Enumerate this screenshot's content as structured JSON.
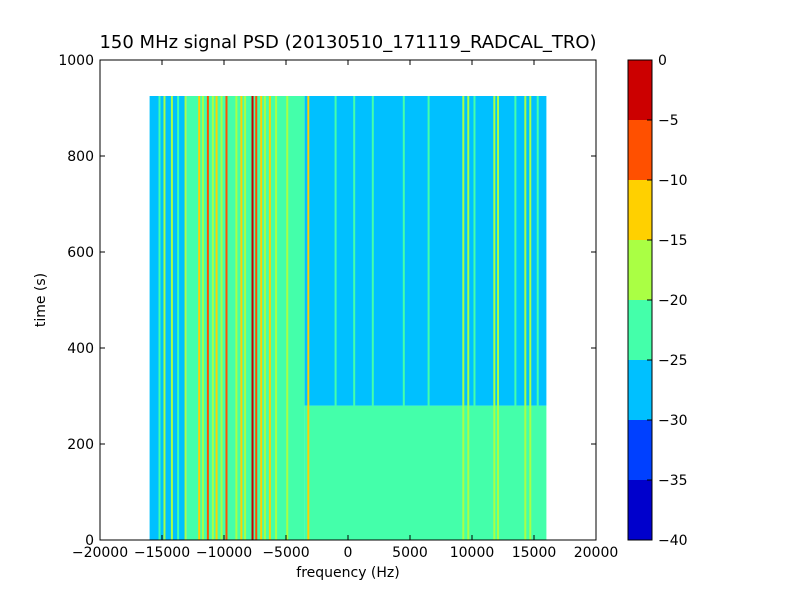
{
  "chart_data": {
    "type": "heatmap",
    "title": "150 MHz signal PSD (20130510_171119_RADCAL_TRO)",
    "xlabel": "frequency (Hz)",
    "ylabel": "time (s)",
    "xlim": [
      -20000,
      20000
    ],
    "ylim": [
      0,
      1000
    ],
    "x_ticks": [
      -20000,
      -15000,
      -10000,
      -5000,
      0,
      5000,
      10000,
      15000,
      20000
    ],
    "y_ticks": [
      0,
      200,
      400,
      600,
      800,
      1000
    ],
    "data_extent": {
      "x": [
        -16000,
        16000
      ],
      "y": [
        0,
        925
      ]
    },
    "colorbar": {
      "range": [
        -40,
        0
      ],
      "ticks": [
        0,
        -5,
        -10,
        -15,
        -20,
        -25,
        -30,
        -35,
        -40
      ],
      "levels": [
        {
          "from": -40,
          "to": -35,
          "color": "#0000cc"
        },
        {
          "from": -35,
          "to": -30,
          "color": "#0040ff"
        },
        {
          "from": -30,
          "to": -25,
          "color": "#00c0ff"
        },
        {
          "from": -25,
          "to": -20,
          "color": "#44ffaa"
        },
        {
          "from": -20,
          "to": -15,
          "color": "#aaff44"
        },
        {
          "from": -15,
          "to": -10,
          "color": "#ffd000"
        },
        {
          "from": -10,
          "to": -5,
          "color": "#ff5000"
        },
        {
          "from": -5,
          "to": 0,
          "color": "#cc0000"
        }
      ]
    },
    "background_psd": [
      {
        "x": [
          -16000,
          -13000
        ],
        "y": [
          0,
          925
        ],
        "value": -26
      },
      {
        "x": [
          -13000,
          -3500
        ],
        "y": [
          0,
          925
        ],
        "value": -24
      },
      {
        "x": [
          -3500,
          16000
        ],
        "y": [
          0,
          280
        ],
        "value": -24
      },
      {
        "x": [
          -3500,
          16000
        ],
        "y": [
          280,
          650
        ],
        "value": -25
      },
      {
        "x": [
          -3500,
          16000
        ],
        "y": [
          650,
          925
        ],
        "value": -28
      }
    ],
    "signal_lines": [
      {
        "x": -15200,
        "value": -22
      },
      {
        "x": -14800,
        "value": -18
      },
      {
        "x": -14200,
        "value": -17
      },
      {
        "x": -13700,
        "value": -22
      },
      {
        "x": -13100,
        "value": -18
      },
      {
        "x": -12400,
        "value": -22
      },
      {
        "x": -12000,
        "value": -12
      },
      {
        "x": -11700,
        "value": -17
      },
      {
        "x": -11300,
        "value": -6
      },
      {
        "x": -10900,
        "value": -17
      },
      {
        "x": -10600,
        "value": -12
      },
      {
        "x": -10200,
        "value": -17
      },
      {
        "x": -9800,
        "value": -7
      },
      {
        "x": -9500,
        "value": -22
      },
      {
        "x": -9000,
        "value": -17
      },
      {
        "x": -8600,
        "value": -12
      },
      {
        "x": -8300,
        "value": -17
      },
      {
        "x": -7700,
        "value": -3
      },
      {
        "x": -7400,
        "value": -8
      },
      {
        "x": -7000,
        "value": -12
      },
      {
        "x": -6700,
        "value": -17
      },
      {
        "x": -6300,
        "value": -12
      },
      {
        "x": -5800,
        "value": -17
      },
      {
        "x": -5400,
        "value": -22
      },
      {
        "x": -4900,
        "value": -17
      },
      {
        "x": -4500,
        "value": -22
      },
      {
        "x": -3900,
        "value": -22
      },
      {
        "x": -3200,
        "value": -13
      },
      {
        "x": -1000,
        "value": -22
      },
      {
        "x": 500,
        "value": -22
      },
      {
        "x": 2000,
        "value": -21
      },
      {
        "x": 4500,
        "value": -22
      },
      {
        "x": 6500,
        "value": -21
      },
      {
        "x": 9300,
        "value": -18
      },
      {
        "x": 9700,
        "value": -17
      },
      {
        "x": 10200,
        "value": -22
      },
      {
        "x": 11800,
        "value": -18
      },
      {
        "x": 12100,
        "value": -17
      },
      {
        "x": 13500,
        "value": -22
      },
      {
        "x": 14300,
        "value": -19
      },
      {
        "x": 14700,
        "value": -17
      },
      {
        "x": 15300,
        "value": -22
      }
    ]
  }
}
